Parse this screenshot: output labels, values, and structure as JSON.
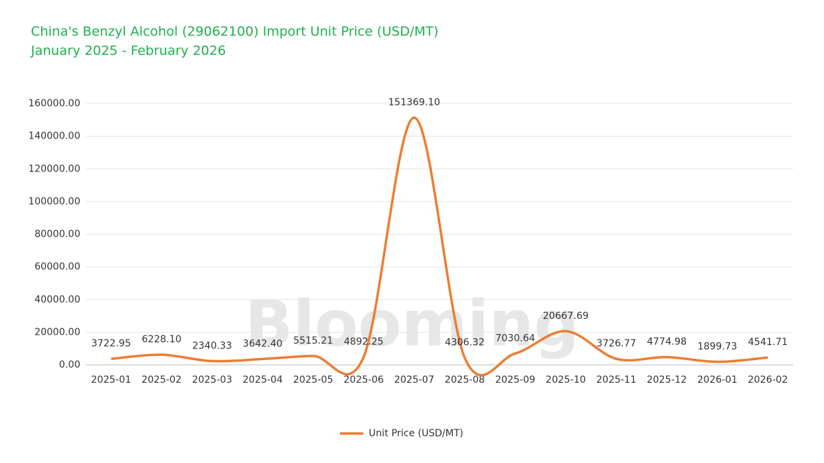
{
  "chart_data": {
    "type": "line",
    "title": "China's Benzyl Alcohol (29062100) Import Unit Price (USD/MT)",
    "subtitle": "January 2025 - February 2026",
    "watermark": "Blooming",
    "categories": [
      "2025-01",
      "2025-02",
      "2025-03",
      "2025-04",
      "2025-05",
      "2025-06",
      "2025-07",
      "2025-08",
      "2025-09",
      "2025-10",
      "2025-11",
      "2025-12",
      "2026-01",
      "2026-02"
    ],
    "series": [
      {
        "name": "Unit Price (USD/MT)",
        "color": "#ed7d31",
        "values": [
          3722.95,
          6228.1,
          2340.33,
          3642.4,
          5515.21,
          4892.25,
          151369.1,
          4306.32,
          7030.64,
          20667.69,
          3726.77,
          4774.98,
          1899.73,
          4541.71
        ],
        "value_labels": [
          "3722.95",
          "6228.10",
          "2340.33",
          "3642.40",
          "5515.21",
          "4892.25",
          "151369.10",
          "4306.32",
          "7030.64",
          "20667.69",
          "3726.77",
          "4774.98",
          "1899.73",
          "4541.71"
        ]
      }
    ],
    "ylim": [
      0,
      160000
    ],
    "yticks": [
      {
        "value": 0,
        "label": "0.00"
      },
      {
        "value": 20000,
        "label": "20000.00"
      },
      {
        "value": 40000,
        "label": "40000.00"
      },
      {
        "value": 60000,
        "label": "60000.00"
      },
      {
        "value": 80000,
        "label": "80000.00"
      },
      {
        "value": 100000,
        "label": "100000.00"
      },
      {
        "value": 120000,
        "label": "120000.00"
      },
      {
        "value": 140000,
        "label": "140000.00"
      },
      {
        "value": 160000,
        "label": "160000.00"
      }
    ],
    "grid": true,
    "legend": "bottom"
  }
}
